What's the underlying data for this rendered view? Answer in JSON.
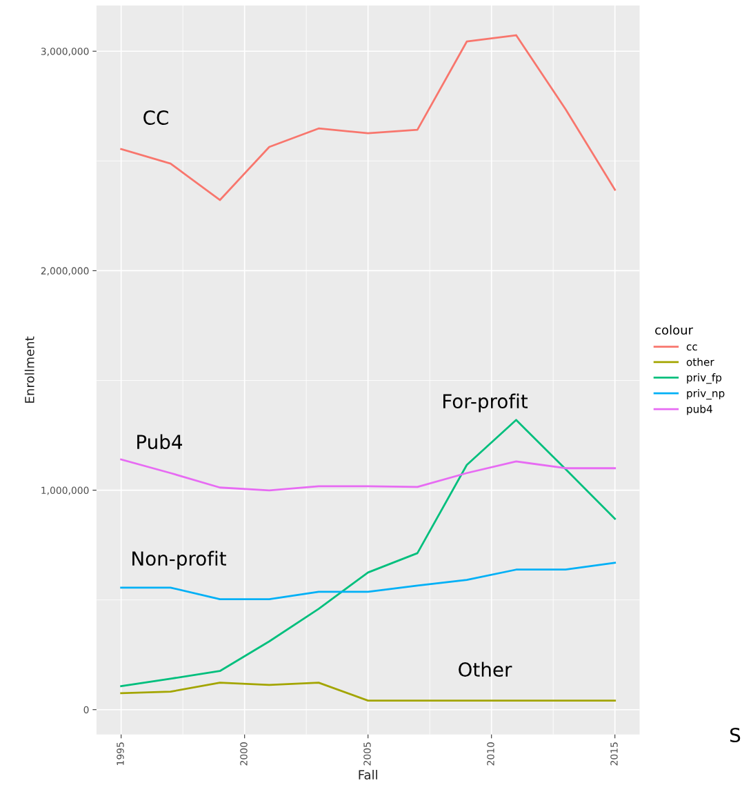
{
  "chart_data": {
    "type": "line",
    "xlabel": "Fall",
    "ylabel": "Enrollment",
    "legend_title": "colour",
    "legend": "right",
    "grid": true,
    "x": [
      1995,
      1997,
      1999,
      2001,
      2003,
      2005,
      2007,
      2009,
      2011,
      2013,
      2015
    ],
    "series": [
      {
        "name": "cc",
        "color": "#f8766d",
        "values": [
          2554000,
          2488000,
          2322000,
          2564000,
          2648000,
          2626000,
          2642000,
          3044000,
          3073000,
          2736000,
          2369000
        ]
      },
      {
        "name": "other",
        "color": "#a3a500",
        "values": [
          75000,
          82000,
          123000,
          113000,
          123000,
          41000,
          41000,
          41000,
          41000,
          41000,
          41000
        ]
      },
      {
        "name": "priv_fp",
        "color": "#00bf7d",
        "values": [
          107000,
          141000,
          176000,
          311000,
          459000,
          625000,
          713000,
          1115000,
          1320000,
          1096000,
          870000
        ]
      },
      {
        "name": "priv_np",
        "color": "#00b0f6",
        "values": [
          556000,
          556000,
          503000,
          503000,
          537000,
          537000,
          565000,
          591000,
          638000,
          638000,
          669000
        ]
      },
      {
        "name": "pub4",
        "color": "#e76bf3",
        "values": [
          1140000,
          1078000,
          1012000,
          999000,
          1018000,
          1018000,
          1015000,
          1078000,
          1131000,
          1100000,
          1100000
        ]
      }
    ],
    "xlim": [
      1994,
      2016
    ],
    "xticks": [
      1995,
      2000,
      2005,
      2010,
      2015
    ],
    "ylim": [
      -113000,
      3208000
    ],
    "yticks": [
      {
        "value": 0,
        "label": "0"
      },
      {
        "value": 1000000,
        "label": "1,000,000"
      },
      {
        "value": 2000000,
        "label": "2,000,000"
      },
      {
        "value": 3000000,
        "label": "3,000,000"
      }
    ],
    "annotations": [
      "CC",
      "Pub4",
      "Non-profit",
      "For-profit",
      "Other",
      "S"
    ]
  }
}
